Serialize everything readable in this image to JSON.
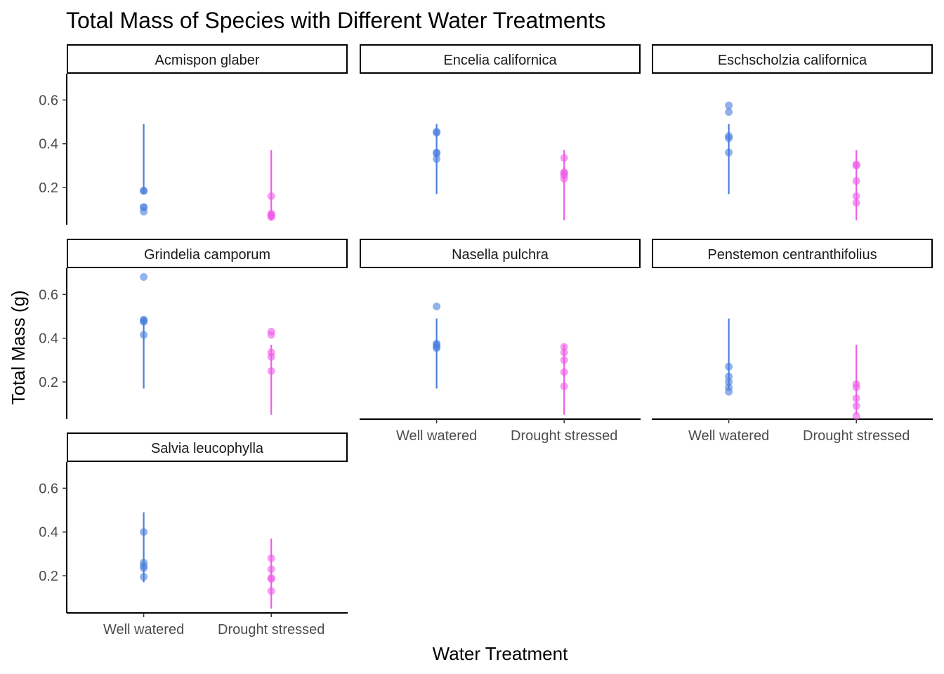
{
  "chart_data": {
    "type": "scatter",
    "title": "Total Mass of Species with Different Water Treatments",
    "xlabel": "Water Treatment",
    "ylabel": "Total Mass (g)",
    "categories": [
      "Well watered",
      "Drought stressed"
    ],
    "yticks": [
      0.2,
      0.4,
      0.6
    ],
    "ylim": [
      0.03,
      0.72
    ],
    "grid": false,
    "legend": "none",
    "colors": {
      "Well watered": "#4a7fe0",
      "Drought stressed": "#ee5ee8"
    },
    "ranges": {
      "Well watered": [
        0.17,
        0.49
      ],
      "Drought stressed": [
        0.05,
        0.37
      ]
    },
    "panels": [
      {
        "species": "Acmispon glaber",
        "series": [
          {
            "category": "Well watered",
            "values": [
              0.185,
              0.185,
              0.11,
              0.11,
              0.09
            ]
          },
          {
            "category": "Drought stressed",
            "values": [
              0.16,
              0.08,
              0.075,
              0.07,
              0.065
            ]
          }
        ]
      },
      {
        "species": "Encelia californica",
        "series": [
          {
            "category": "Well watered",
            "values": [
              0.455,
              0.45,
              0.36,
              0.355,
              0.33
            ]
          },
          {
            "category": "Drought stressed",
            "values": [
              0.335,
              0.27,
              0.265,
              0.255,
              0.24
            ]
          }
        ]
      },
      {
        "species": "Eschscholzia californica",
        "series": [
          {
            "category": "Well watered",
            "values": [
              0.575,
              0.545,
              0.435,
              0.425,
              0.36
            ]
          },
          {
            "category": "Drought stressed",
            "values": [
              0.305,
              0.3,
              0.23,
              0.16,
              0.13
            ]
          }
        ]
      },
      {
        "species": "Grindelia camporum",
        "series": [
          {
            "category": "Well watered",
            "values": [
              0.68,
              0.485,
              0.48,
              0.475,
              0.415
            ]
          },
          {
            "category": "Drought stressed",
            "values": [
              0.43,
              0.415,
              0.335,
              0.315,
              0.25
            ]
          }
        ]
      },
      {
        "species": "Nasella pulchra",
        "series": [
          {
            "category": "Well watered",
            "values": [
              0.545,
              0.375,
              0.37,
              0.36,
              0.355
            ]
          },
          {
            "category": "Drought stressed",
            "values": [
              0.36,
              0.335,
              0.3,
              0.245,
              0.18
            ]
          }
        ]
      },
      {
        "species": "Penstemon centranthifolius",
        "series": [
          {
            "category": "Well watered",
            "values": [
              0.27,
              0.225,
              0.2,
              0.175,
              0.155
            ]
          },
          {
            "category": "Drought stressed",
            "values": [
              0.19,
              0.175,
              0.125,
              0.09,
              0.045
            ]
          }
        ]
      },
      {
        "species": "Salvia leucophylla",
        "series": [
          {
            "category": "Well watered",
            "values": [
              0.4,
              0.26,
              0.245,
              0.235,
              0.195
            ]
          },
          {
            "category": "Drought stressed",
            "values": [
              0.28,
              0.23,
              0.19,
              0.185,
              0.13
            ]
          }
        ]
      }
    ]
  }
}
